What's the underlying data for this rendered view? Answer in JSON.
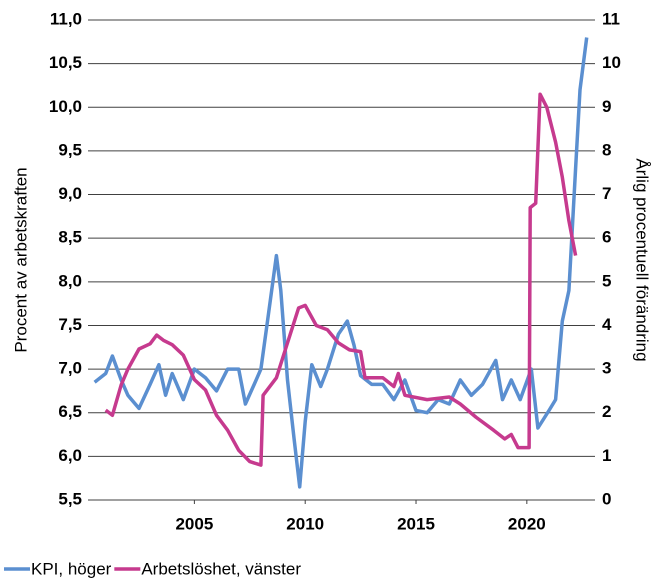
{
  "chart_data": {
    "type": "line",
    "y_label": "Procent av arbetskraften",
    "y2_label": "Årlig procentuell förändring",
    "xlim": [
      2000.2,
      2022.85
    ],
    "xticks": [
      2005,
      2010,
      2015,
      2020
    ],
    "ylim": [
      5.5,
      11.0
    ],
    "yticks": [
      {
        "value": 5.5,
        "label": "5,5"
      },
      {
        "value": 6.0,
        "label": "6,0"
      },
      {
        "value": 6.5,
        "label": "6,5"
      },
      {
        "value": 7.0,
        "label": "7,0"
      },
      {
        "value": 7.5,
        "label": "7,5"
      },
      {
        "value": 8.0,
        "label": "8,0"
      },
      {
        "value": 8.5,
        "label": "8,5"
      },
      {
        "value": 9.0,
        "label": "9,0"
      },
      {
        "value": 9.5,
        "label": "9,5"
      },
      {
        "value": 10.0,
        "label": "10,0"
      },
      {
        "value": 10.5,
        "label": "10,5"
      },
      {
        "value": 11.0,
        "label": "11,0"
      }
    ],
    "y2lim": [
      0,
      11
    ],
    "y2ticks": [
      0,
      1,
      2,
      3,
      4,
      5,
      6,
      7,
      8,
      9,
      10,
      11
    ],
    "grid": true,
    "legend": "bottom-left",
    "series": [
      {
        "name": "KPI, höger",
        "color": "#5b8fd0",
        "axis": "y2",
        "x": [
          2000.5,
          2001.0,
          2001.3,
          2001.7,
          2002.0,
          2002.5,
          2003.0,
          2003.4,
          2003.7,
          2004.0,
          2004.5,
          2005.0,
          2005.5,
          2006.0,
          2006.5,
          2007.0,
          2007.3,
          2007.7,
          2008.0,
          2008.3,
          2008.7,
          2008.9,
          2009.2,
          2009.5,
          2009.75,
          2010.0,
          2010.3,
          2010.7,
          2011.0,
          2011.5,
          2011.9,
          2012.2,
          2012.5,
          2013.0,
          2013.5,
          2014.0,
          2014.5,
          2015.0,
          2015.5,
          2016.0,
          2016.5,
          2017.0,
          2017.5,
          2018.0,
          2018.6,
          2018.9,
          2019.3,
          2019.7,
          2020.2,
          2020.5,
          2021.0,
          2021.3,
          2021.6,
          2021.9,
          2022.2,
          2022.4,
          2022.7
        ],
        "values": [
          2.7,
          2.9,
          3.3,
          2.75,
          2.4,
          2.1,
          2.65,
          3.1,
          2.4,
          2.9,
          2.3,
          3.0,
          2.8,
          2.5,
          3.0,
          3.0,
          2.2,
          2.65,
          3.0,
          4.1,
          5.6,
          4.8,
          2.75,
          1.4,
          0.3,
          1.8,
          3.1,
          2.6,
          3.0,
          3.8,
          4.1,
          3.55,
          2.85,
          2.65,
          2.65,
          2.3,
          2.75,
          2.05,
          2.0,
          2.3,
          2.2,
          2.75,
          2.4,
          2.65,
          3.2,
          2.3,
          2.75,
          2.3,
          3.0,
          1.65,
          2.05,
          2.3,
          4.1,
          4.8,
          7.6,
          9.4,
          10.6
        ]
      },
      {
        "name": "Arbetslöshet, vänster",
        "color": "#c63a8e",
        "axis": "y",
        "x": [
          2001.0,
          2001.3,
          2001.7,
          2002.0,
          2002.5,
          2003.0,
          2003.3,
          2003.6,
          2004.0,
          2004.5,
          2005.0,
          2005.5,
          2006.0,
          2006.5,
          2007.0,
          2007.5,
          2008.0,
          2008.1,
          2008.7,
          2009.2,
          2009.7,
          2010.0,
          2010.5,
          2011.0,
          2011.5,
          2012.0,
          2012.5,
          2012.7,
          2013.5,
          2014.0,
          2014.2,
          2014.5,
          2015.5,
          2016.5,
          2017.0,
          2017.7,
          2018.5,
          2019.0,
          2019.3,
          2019.6,
          2020.1,
          2020.15,
          2020.4,
          2020.6,
          2020.9,
          2021.3,
          2021.6,
          2021.9,
          2022.2
        ],
        "values": [
          6.53,
          6.47,
          6.82,
          7.0,
          7.23,
          7.29,
          7.39,
          7.33,
          7.28,
          7.16,
          6.88,
          6.76,
          6.47,
          6.3,
          6.07,
          5.94,
          5.9,
          6.7,
          6.9,
          7.3,
          7.7,
          7.73,
          7.5,
          7.45,
          7.3,
          7.22,
          7.2,
          6.9,
          6.9,
          6.8,
          6.95,
          6.7,
          6.65,
          6.68,
          6.6,
          6.45,
          6.3,
          6.2,
          6.25,
          6.1,
          6.1,
          8.85,
          8.9,
          10.15,
          10.0,
          9.6,
          9.2,
          8.7,
          8.3
        ]
      }
    ]
  }
}
